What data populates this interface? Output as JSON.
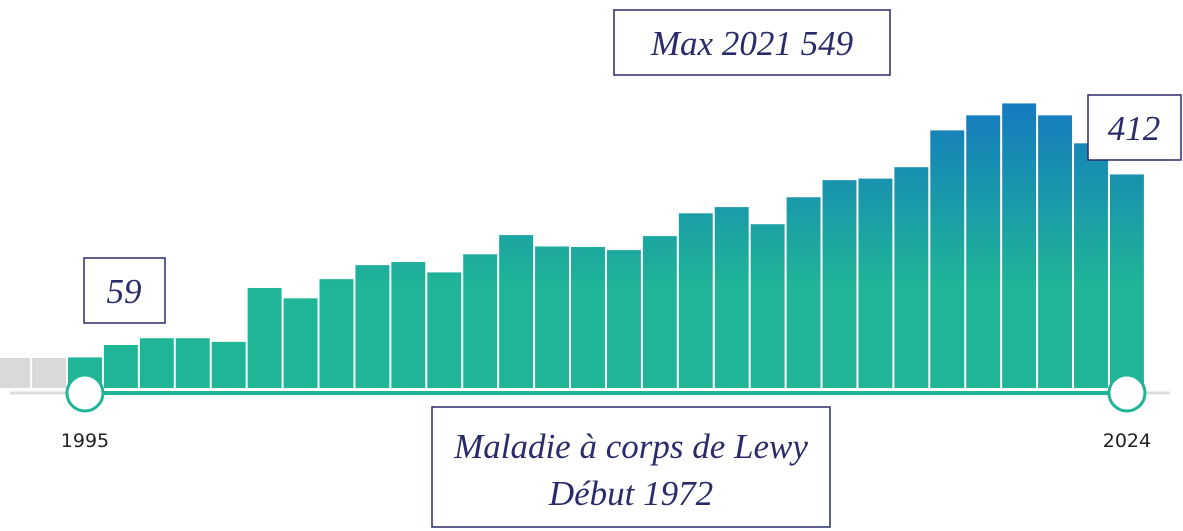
{
  "chart_data": {
    "type": "bar",
    "categories": [
      null,
      null,
      "1995",
      null,
      null,
      null,
      null,
      null,
      null,
      null,
      null,
      null,
      null,
      null,
      null,
      null,
      null,
      null,
      null,
      null,
      null,
      null,
      null,
      null,
      null,
      null,
      null,
      null,
      null,
      null,
      null,
      "2024"
    ],
    "values": [
      58,
      58,
      59,
      83,
      96,
      96,
      89,
      193,
      173,
      210,
      237,
      243,
      223,
      258,
      295,
      273,
      272,
      266,
      293,
      337,
      349,
      316,
      368,
      401,
      404,
      426,
      497,
      526,
      549,
      526,
      472,
      412
    ],
    "ylim": [
      0,
      600
    ],
    "colors": {
      "selected_low": "#1fb596",
      "selected_high": "#1479c0",
      "unselected": "#d9d9d9"
    },
    "annotations": [
      "Max 2021 549",
      "59",
      "412",
      "Maladie à corps de Lewy",
      "Début 1972"
    ]
  }
}
